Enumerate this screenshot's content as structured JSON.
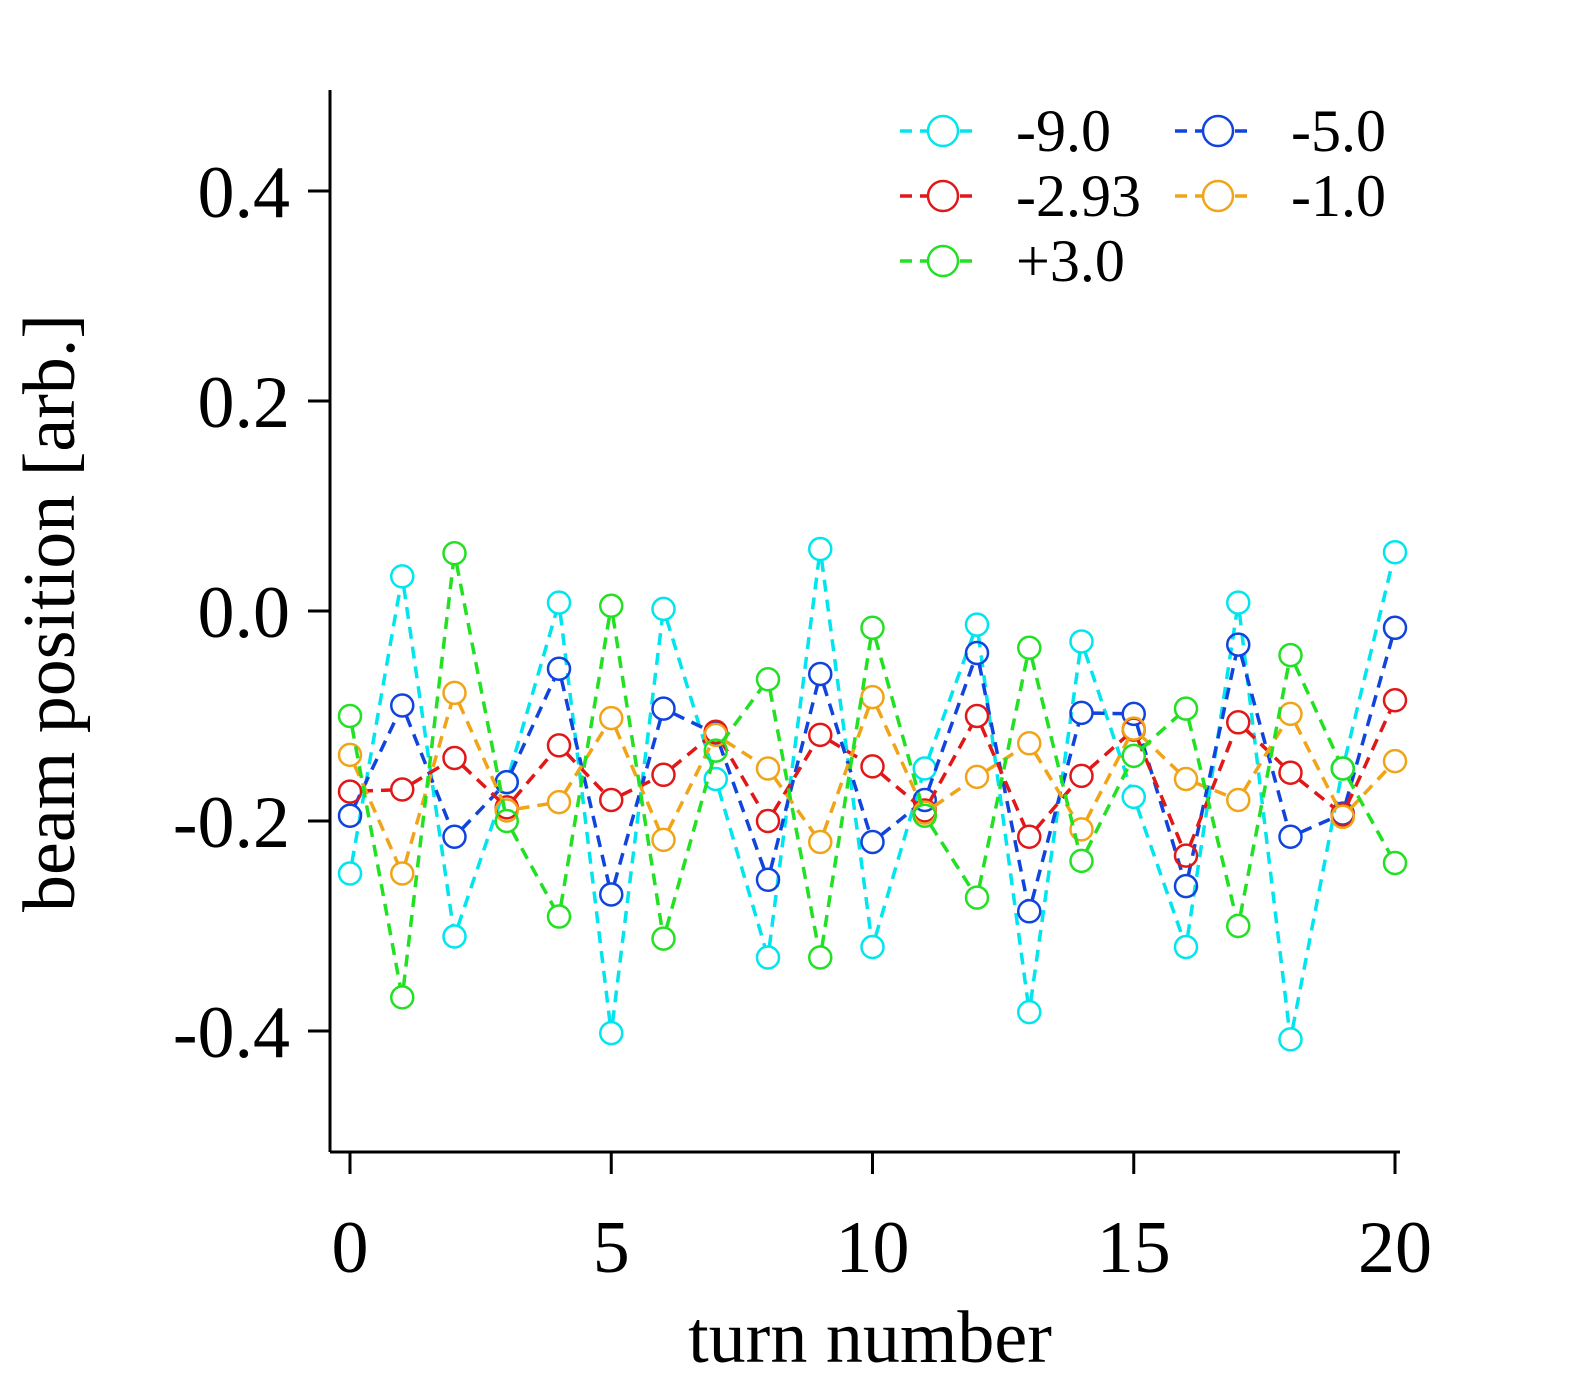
{
  "chart_data": {
    "type": "line",
    "xlabel": "turn number",
    "ylabel": "beam position [arb.]",
    "xlim": [
      -0.3,
      20
    ],
    "ylim": [
      -0.52,
      0.5
    ],
    "xticks": [
      0,
      5,
      10,
      15,
      20
    ],
    "xtick_labels": [
      "0",
      "5",
      "10",
      "15",
      "20"
    ],
    "yticks": [
      -0.4,
      -0.2,
      0.0,
      0.2,
      0.4
    ],
    "ytick_labels": [
      "-0.4",
      "-0.2",
      "0.0",
      "0.2",
      "0.4"
    ],
    "grid": false,
    "legend_position": "top-right",
    "x": [
      0,
      1,
      2,
      3,
      4,
      5,
      6,
      7,
      8,
      9,
      10,
      11,
      12,
      13,
      14,
      15,
      16,
      17,
      18,
      19,
      20
    ],
    "series": [
      {
        "name": "-9.0",
        "color": "#00e5ee",
        "marker": "open-circle",
        "line": "dashed",
        "values": [
          -0.25,
          0.033,
          -0.31,
          -0.163,
          0.008,
          -0.402,
          0.002,
          -0.16,
          -0.33,
          0.059,
          -0.32,
          -0.15,
          -0.013,
          -0.382,
          -0.029,
          -0.177,
          -0.32,
          0.008,
          -0.408,
          -0.15,
          0.056
        ]
      },
      {
        "name": "-5.0",
        "color": "#1044dd",
        "marker": "open-circle",
        "line": "dashed",
        "values": [
          -0.195,
          -0.09,
          -0.215,
          -0.163,
          -0.055,
          -0.27,
          -0.093,
          -0.117,
          -0.256,
          -0.06,
          -0.22,
          -0.18,
          -0.04,
          -0.286,
          -0.097,
          -0.098,
          -0.262,
          -0.032,
          -0.215,
          -0.193,
          -0.016
        ]
      },
      {
        "name": "-2.93",
        "color": "#e01818",
        "marker": "open-circle",
        "line": "dashed",
        "values": [
          -0.172,
          -0.17,
          -0.14,
          -0.187,
          -0.128,
          -0.18,
          -0.156,
          -0.115,
          -0.2,
          -0.118,
          -0.148,
          -0.19,
          -0.1,
          -0.215,
          -0.157,
          -0.113,
          -0.233,
          -0.106,
          -0.154,
          -0.194,
          -0.085
        ]
      },
      {
        "name": "-1.0",
        "color": "#f0a418",
        "marker": "open-circle",
        "line": "dashed",
        "values": [
          -0.137,
          -0.25,
          -0.078,
          -0.19,
          -0.182,
          -0.102,
          -0.218,
          -0.118,
          -0.15,
          -0.22,
          -0.082,
          -0.192,
          -0.158,
          -0.126,
          -0.208,
          -0.112,
          -0.16,
          -0.18,
          -0.098,
          -0.196,
          -0.143
        ]
      },
      {
        "name": "+3.0",
        "color": "#22e022",
        "marker": "open-circle",
        "line": "dashed",
        "values": [
          -0.1,
          -0.368,
          0.055,
          -0.2,
          -0.291,
          0.005,
          -0.312,
          -0.133,
          -0.065,
          -0.33,
          -0.016,
          -0.195,
          -0.273,
          -0.035,
          -0.238,
          -0.138,
          -0.093,
          -0.3,
          -0.042,
          -0.15,
          -0.24
        ]
      }
    ],
    "legend_order": [
      [
        "-9.0",
        "-5.0"
      ],
      [
        "-2.93",
        "-1.0"
      ],
      [
        "+3.0"
      ]
    ]
  }
}
